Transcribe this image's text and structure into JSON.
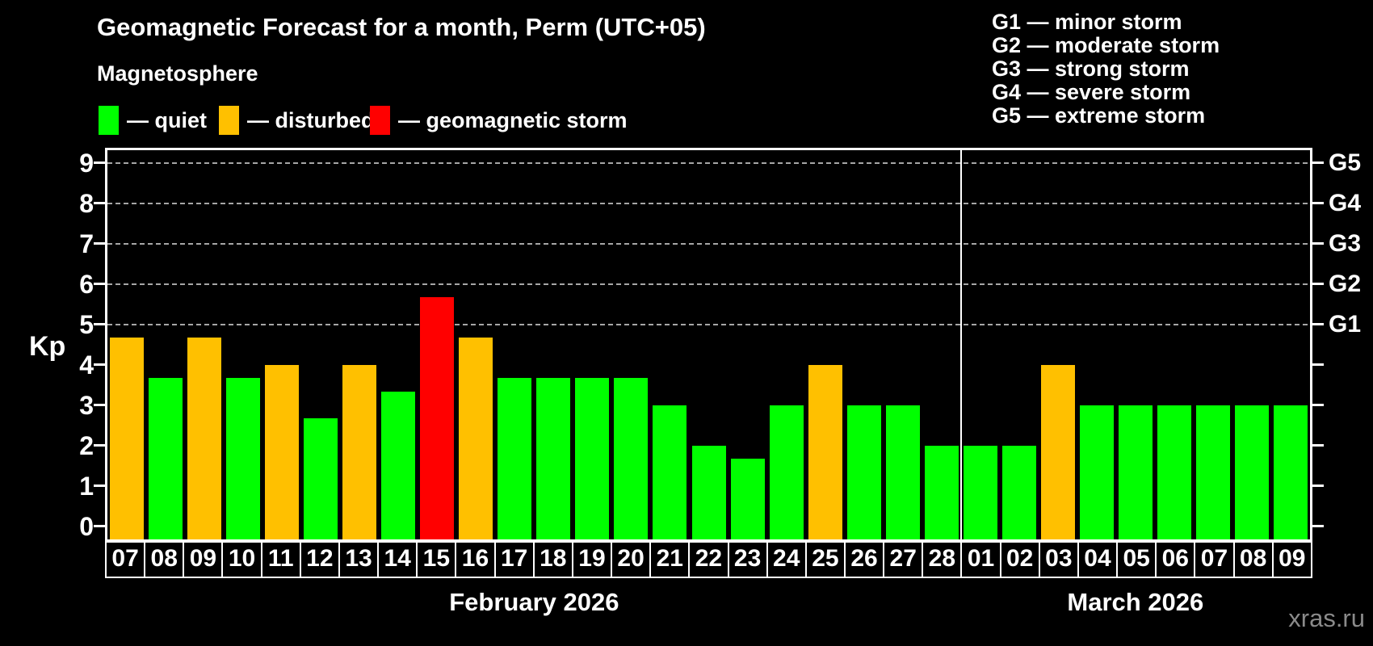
{
  "header": {
    "title": "Geomagnetic Forecast for a month, Perm (UTC+05)",
    "subtitle": "Magnetosphere"
  },
  "legend": {
    "items": [
      {
        "name": "quiet",
        "text": "— quiet",
        "color": "#00ff00",
        "x": 122
      },
      {
        "name": "disturbed",
        "text": "— disturbed",
        "color": "#ffc000",
        "x": 271
      },
      {
        "name": "geomagnetic-storm",
        "text": "— geomagnetic storm",
        "color": "#ff0000",
        "x": 458
      }
    ]
  },
  "storm_scale_legend": {
    "lines": [
      {
        "code": "G1",
        "label": "minor storm",
        "text": "G1 — minor storm"
      },
      {
        "code": "G2",
        "label": "moderate storm",
        "text": "G2 — moderate storm"
      },
      {
        "code": "G3",
        "label": "strong storm",
        "text": "G3 — strong storm"
      },
      {
        "code": "G4",
        "label": "severe storm",
        "text": "G4 — severe storm"
      },
      {
        "code": "G5",
        "label": "extreme storm",
        "text": "G5 — extreme storm"
      }
    ]
  },
  "watermark": "xras.ru",
  "chart_data": {
    "type": "bar",
    "title": "Geomagnetic Forecast for a month, Perm (UTC+05)",
    "ylabel": "Kp",
    "ylim": [
      -0.33,
      9.37
    ],
    "yticks": [
      0,
      1,
      2,
      3,
      4,
      5,
      6,
      7,
      8,
      9
    ],
    "gridlines_at": [
      5,
      6,
      7,
      8,
      9
    ],
    "grid": "dashed horizontal at storm levels only",
    "legend_position": "top",
    "right_axis_labels": [
      {
        "value": 5,
        "label": "G1"
      },
      {
        "value": 6,
        "label": "G2"
      },
      {
        "value": 7,
        "label": "G3"
      },
      {
        "value": 8,
        "label": "G4"
      },
      {
        "value": 9,
        "label": "G5"
      }
    ],
    "months": [
      {
        "label": "February 2026",
        "days": 22
      },
      {
        "label": "March 2026",
        "days": 9
      }
    ],
    "categories": [
      "07",
      "08",
      "09",
      "10",
      "11",
      "12",
      "13",
      "14",
      "15",
      "16",
      "17",
      "18",
      "19",
      "20",
      "21",
      "22",
      "23",
      "24",
      "25",
      "26",
      "27",
      "28",
      "01",
      "02",
      "03",
      "04",
      "05",
      "06",
      "07",
      "08",
      "09"
    ],
    "values": [
      4.67,
      3.67,
      4.67,
      3.67,
      4.0,
      2.67,
      4.0,
      3.33,
      5.67,
      4.67,
      3.67,
      3.67,
      3.67,
      3.67,
      3.0,
      2.0,
      1.67,
      3.0,
      4.0,
      3.0,
      3.0,
      2.0,
      2.0,
      2.0,
      4.0,
      3.0,
      3.0,
      3.0,
      3.0,
      3.0,
      3.0
    ],
    "statuses": [
      "disturbed",
      "quiet",
      "disturbed",
      "quiet",
      "disturbed",
      "quiet",
      "disturbed",
      "quiet",
      "storm",
      "disturbed",
      "quiet",
      "quiet",
      "quiet",
      "quiet",
      "quiet",
      "quiet",
      "quiet",
      "quiet",
      "disturbed",
      "quiet",
      "quiet",
      "quiet",
      "quiet",
      "quiet",
      "disturbed",
      "quiet",
      "quiet",
      "quiet",
      "quiet",
      "quiet",
      "quiet"
    ],
    "status_colors": {
      "quiet": "#00ff00",
      "disturbed": "#ffc000",
      "storm": "#ff0000"
    }
  }
}
